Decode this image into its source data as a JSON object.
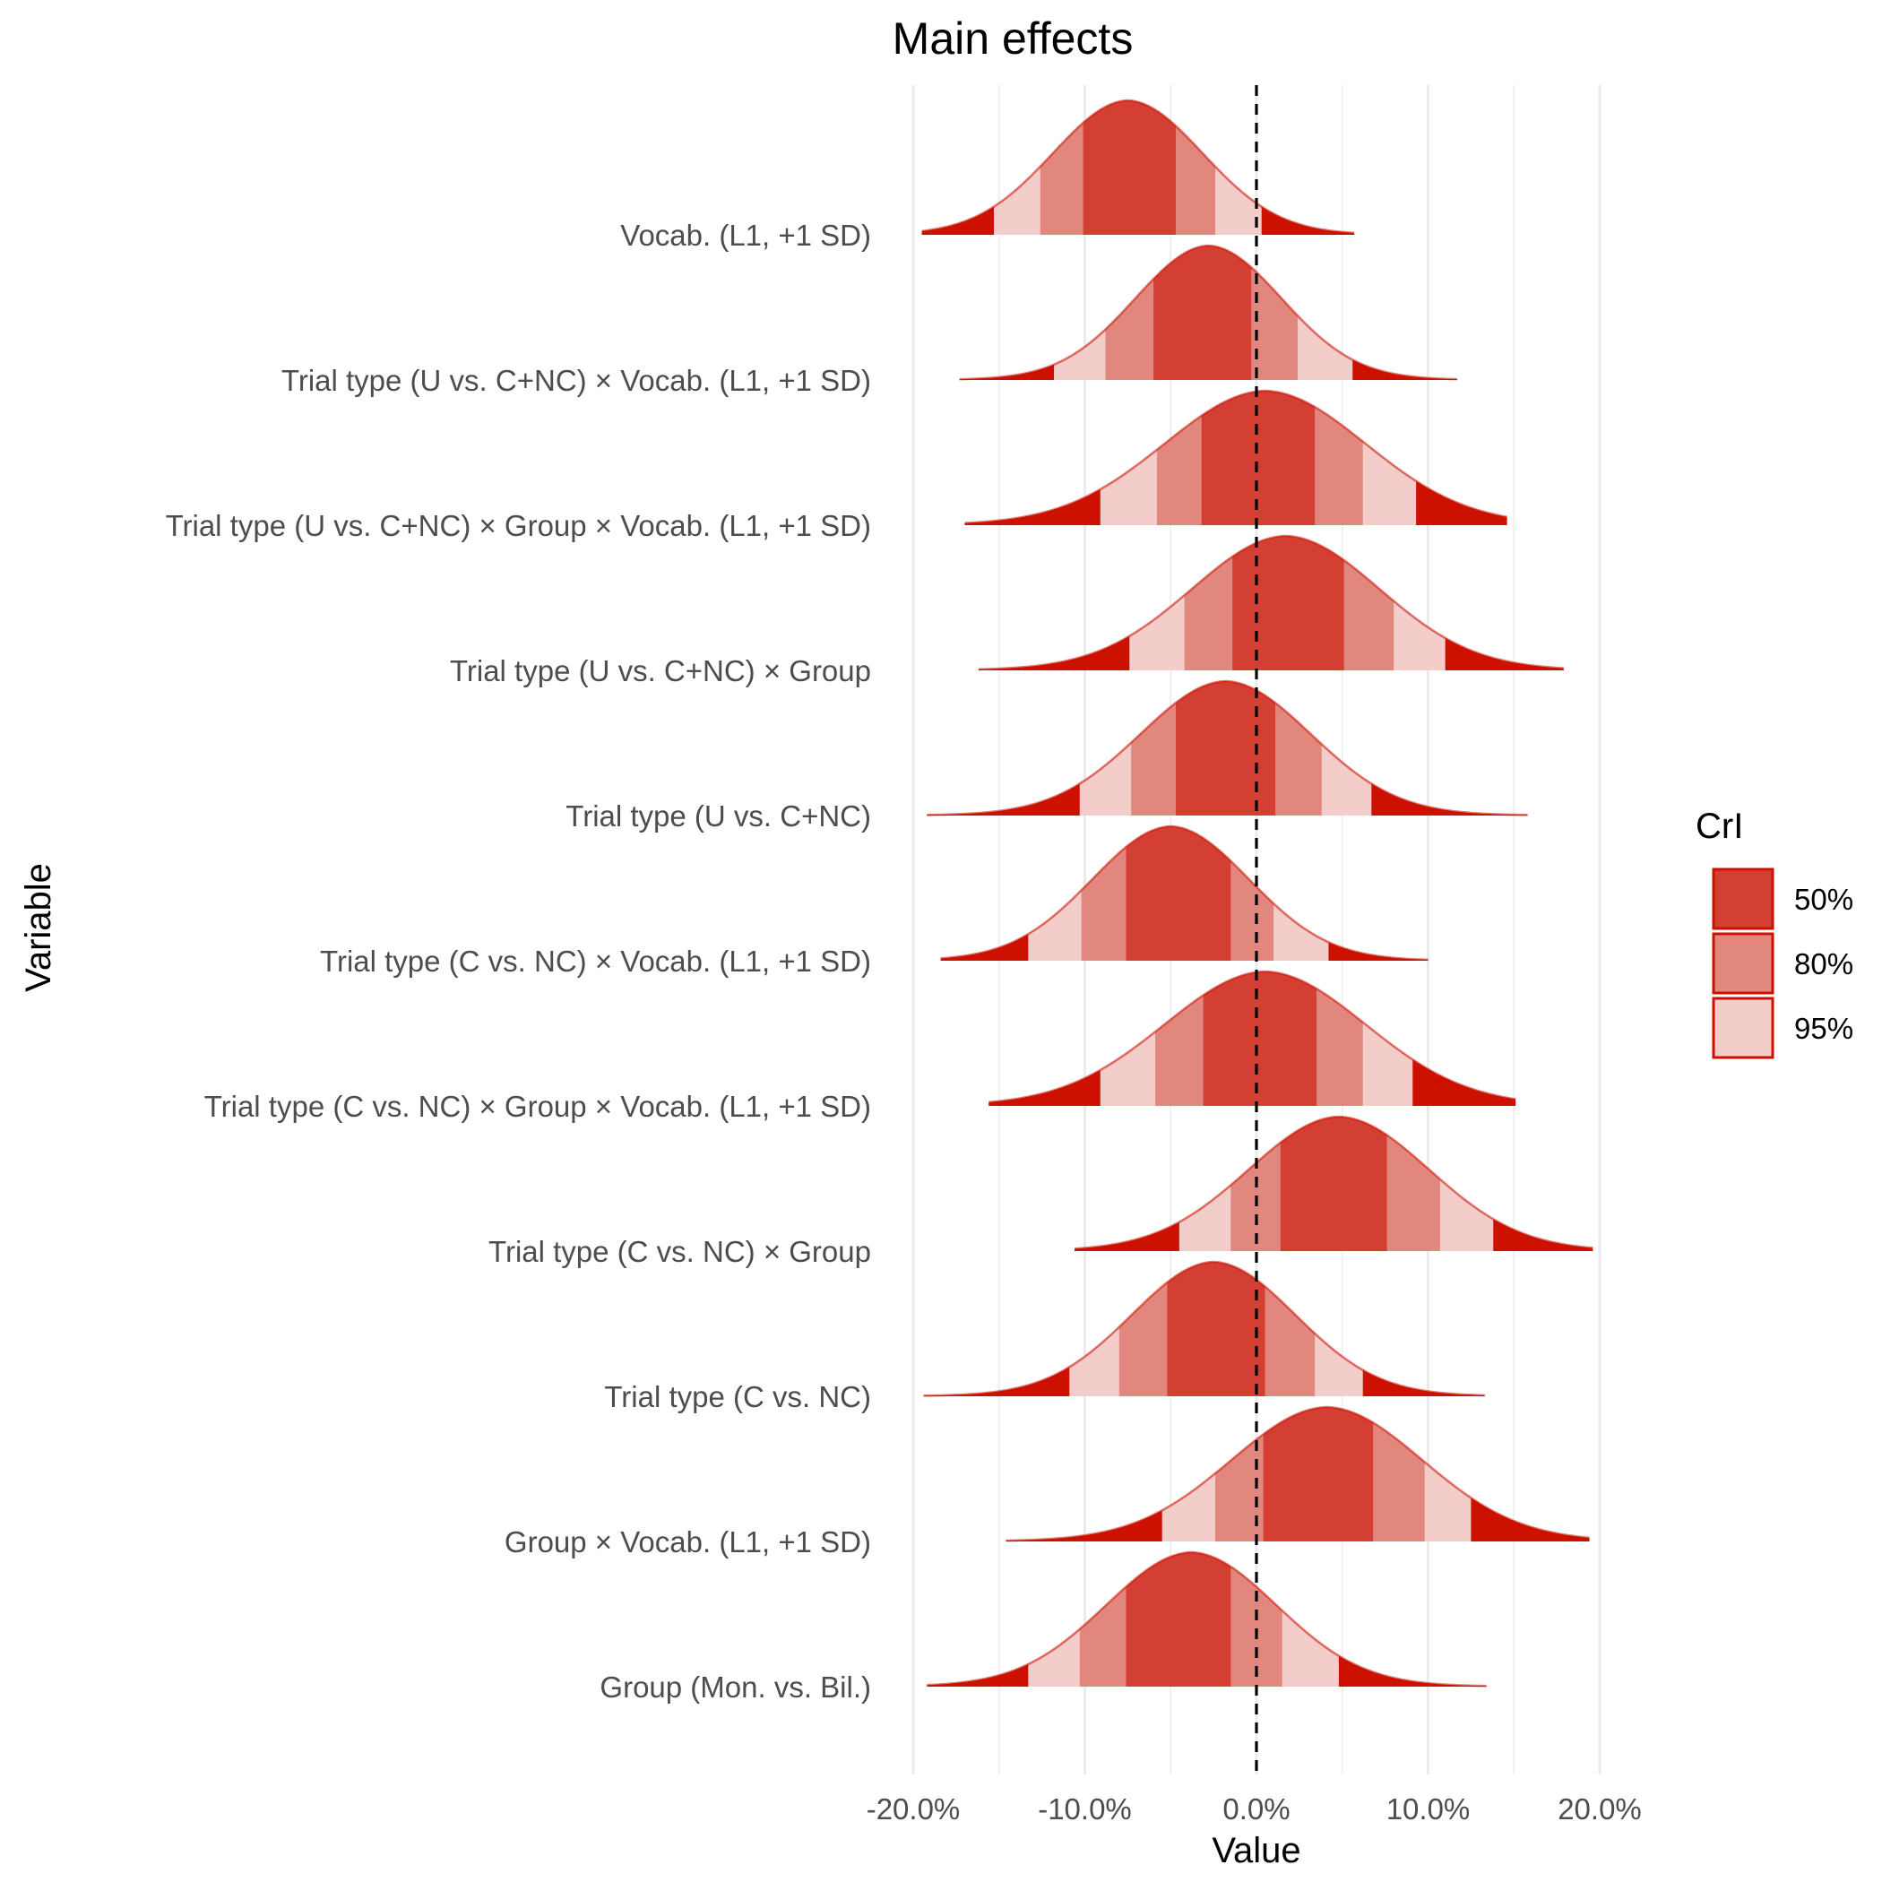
{
  "chart_data": {
    "type": "ridgeline",
    "title": "Main effects",
    "xlabel": "Value",
    "ylabel": "Variable",
    "xlim": [
      -21.5,
      21.5
    ],
    "x_ticks": [
      -20,
      -10,
      0,
      10,
      20
    ],
    "x_tick_labels": [
      "-20.0%",
      "-10.0%",
      "0.0%",
      "10.0%",
      "20.0%"
    ],
    "reference_line": 0,
    "grid": "vertical",
    "legend": {
      "title": "CrI",
      "placement": "right",
      "entries": [
        {
          "label": "50%",
          "color": "#d43f33"
        },
        {
          "label": "80%",
          "color": "#e2877e"
        },
        {
          "label": "95%",
          "color": "#f2cdc9"
        }
      ]
    },
    "colors": {
      "tail": "#cc1100",
      "outline": "#cc1100",
      "ci50": "#d43f33",
      "ci80": "#e2877e",
      "ci95": "#f2cdc9",
      "grid": "#ebebeb"
    },
    "series": [
      {
        "label": "Vocab. (L1, +1 SD)",
        "mode": -7.5,
        "sd_left": 4.4,
        "sd_right": 4.4,
        "min": -19.5,
        "max": 5.7,
        "ci95": [
          -15.3,
          0.3
        ],
        "ci80": [
          -12.6,
          -2.4
        ],
        "ci50": [
          -10.1,
          -4.7
        ]
      },
      {
        "label": "Trial type (U vs. C+NC) × Vocab. (L1, +1 SD)",
        "mode": -2.8,
        "sd_left": 4.3,
        "sd_right": 4.3,
        "min": -17.3,
        "max": 11.7,
        "ci95": [
          -11.8,
          5.6
        ],
        "ci80": [
          -8.8,
          2.4
        ],
        "ci50": [
          -6.0,
          -0.3
        ]
      },
      {
        "label": "Trial type (U vs. C+NC) × Group × Vocab. (L1, +1 SD)",
        "mode": 0.5,
        "sd_left": 5.9,
        "sd_right": 5.9,
        "min": -17.0,
        "max": 14.6,
        "ci95": [
          -9.1,
          9.3
        ],
        "ci80": [
          -5.8,
          6.2
        ],
        "ci50": [
          -3.2,
          3.4
        ]
      },
      {
        "label": "Trial type (U vs. C+NC) × Group",
        "mode": 1.7,
        "sd_left": 5.5,
        "sd_right": 5.5,
        "min": -16.2,
        "max": 17.9,
        "ci95": [
          -7.4,
          11.0
        ],
        "ci80": [
          -4.2,
          8.0
        ],
        "ci50": [
          -1.4,
          5.1
        ]
      },
      {
        "label": "Trial type (U vs. C+NC)",
        "mode": -1.8,
        "sd_left": 5.0,
        "sd_right": 5.0,
        "min": -19.2,
        "max": 15.8,
        "ci95": [
          -10.3,
          6.7
        ],
        "ci80": [
          -7.3,
          3.8
        ],
        "ci50": [
          -4.7,
          1.1
        ]
      },
      {
        "label": "Trial type (C vs. NC) × Vocab. (L1, +1 SD)",
        "mode": -5.0,
        "sd_left": 4.6,
        "sd_right": 4.6,
        "min": -18.4,
        "max": 10.0,
        "ci95": [
          -13.3,
          4.2
        ],
        "ci80": [
          -10.2,
          1.0
        ],
        "ci50": [
          -7.6,
          -1.5
        ]
      },
      {
        "label": "Trial type (C vs. NC) × Group × Vocab. (L1, +1 SD)",
        "mode": 0.5,
        "sd_left": 5.9,
        "sd_right": 5.9,
        "min": -15.6,
        "max": 15.1,
        "ci95": [
          -9.1,
          9.1
        ],
        "ci80": [
          -5.9,
          6.2
        ],
        "ci50": [
          -3.1,
          3.5
        ]
      },
      {
        "label": "Trial type (C vs. NC) × Group",
        "mode": 4.8,
        "sd_left": 5.3,
        "sd_right": 5.3,
        "min": -10.6,
        "max": 19.6,
        "ci95": [
          -4.5,
          13.8
        ],
        "ci80": [
          -1.5,
          10.7
        ],
        "ci50": [
          1.4,
          7.6
        ]
      },
      {
        "label": "Trial type (C vs. NC)",
        "mode": -2.5,
        "sd_left": 4.8,
        "sd_right": 4.8,
        "min": -19.4,
        "max": 13.3,
        "ci95": [
          -10.9,
          6.2
        ],
        "ci80": [
          -8.0,
          3.4
        ],
        "ci50": [
          -5.2,
          0.5
        ]
      },
      {
        "label": "Group × Vocab. (L1, +1 SD)",
        "mode": 4.1,
        "sd_left": 5.6,
        "sd_right": 5.6,
        "min": -14.6,
        "max": 19.4,
        "ci95": [
          -5.5,
          12.5
        ],
        "ci80": [
          -2.4,
          9.8
        ],
        "ci50": [
          0.4,
          6.8
        ]
      },
      {
        "label": "Group (Mon. vs. Bil.)",
        "mode": -3.8,
        "sd_left": 5.0,
        "sd_right": 5.0,
        "min": -19.2,
        "max": 13.4,
        "ci95": [
          -13.3,
          4.8
        ],
        "ci80": [
          -10.3,
          1.5
        ],
        "ci50": [
          -7.6,
          -1.5
        ]
      }
    ]
  }
}
